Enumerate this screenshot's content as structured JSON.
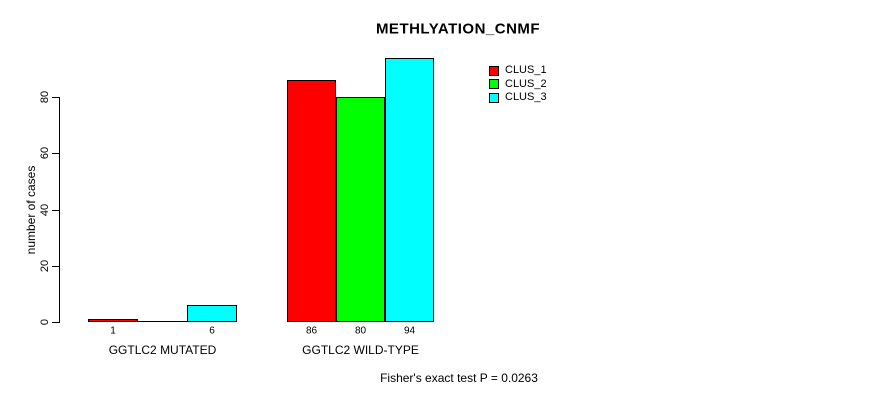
{
  "chart_data": {
    "type": "bar",
    "title": "METHLYATION_CNMF",
    "ylabel": "number of cases",
    "xlabel": "",
    "categories": [
      "GGTLC2 MUTATED",
      "GGTLC2 WILD-TYPE"
    ],
    "series": [
      {
        "name": "CLUS_1",
        "color": "#ff0000",
        "values": [
          1,
          86
        ]
      },
      {
        "name": "CLUS_2",
        "color": "#00ff00",
        "values": [
          0,
          80
        ]
      },
      {
        "name": "CLUS_3",
        "color": "#00ffff",
        "values": [
          6,
          94
        ]
      }
    ],
    "bar_labels": [
      [
        "1",
        "",
        "6"
      ],
      [
        "86",
        "80",
        "94"
      ]
    ],
    "yticks": [
      0,
      20,
      40,
      60,
      80
    ],
    "ylim": [
      0,
      94
    ],
    "grid": false,
    "legend_position": "top-right",
    "annotation": "Fisher's exact test P = 0.0263"
  }
}
